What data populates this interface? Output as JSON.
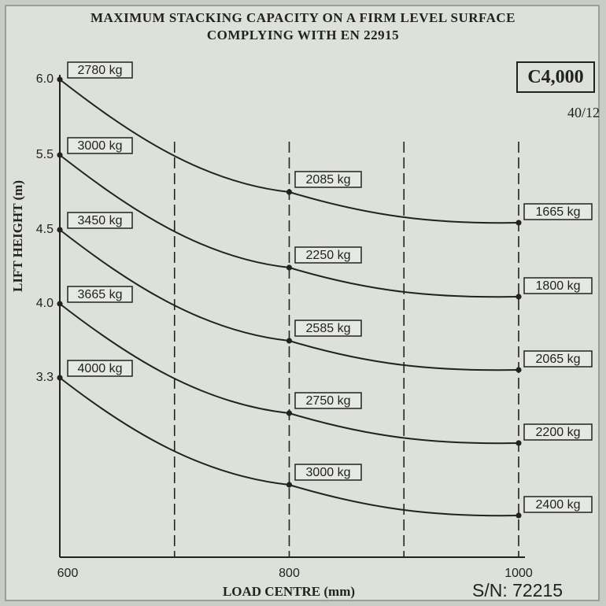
{
  "header": {
    "title_line1": "MAXIMUM STACKING CAPACITY ON A FIRM LEVEL SURFACE",
    "title_line2": "COMPLYING WITH EN 22915"
  },
  "model": "C4,000",
  "code": "40/12",
  "serial": "S/N: 72215",
  "colors": {
    "ink": "#222222",
    "plate": "#dde1da",
    "label_fill": "#e6e9e3"
  },
  "chart_data": {
    "type": "line",
    "title": "MAXIMUM STACKING CAPACITY ON A FIRM LEVEL SURFACE COMPLYING WITH EN 22915",
    "xlabel": "LOAD CENTRE (mm)",
    "ylabel": "LIFT HEIGHT (m)",
    "x_ticks": [
      "600",
      "800",
      "1000"
    ],
    "x_points": [
      600,
      800,
      1000
    ],
    "x_dashed_gridlines": [
      700,
      800,
      900,
      1000
    ],
    "grid": "vertical dashed",
    "series": [
      {
        "height_label": "6.0",
        "values": [
          2780,
          2085,
          1665
        ],
        "labels": [
          "2780 kg",
          "2085 kg",
          "1665 kg"
        ]
      },
      {
        "height_label": "5.5",
        "values": [
          3000,
          2250,
          1800
        ],
        "labels": [
          "3000 kg",
          "2250 kg",
          "1800 kg"
        ]
      },
      {
        "height_label": "4.5",
        "values": [
          3450,
          2585,
          2065
        ],
        "labels": [
          "3450 kg",
          "2585 kg",
          "2065 kg"
        ]
      },
      {
        "height_label": "4.0",
        "values": [
          3665,
          2750,
          2200
        ],
        "labels": [
          "3665 kg",
          "2750 kg",
          "2200 kg"
        ]
      },
      {
        "height_label": "3.3",
        "values": [
          4000,
          3000,
          2400
        ],
        "labels": [
          "4000 kg",
          "3000 kg",
          "2400 kg"
        ]
      }
    ]
  }
}
